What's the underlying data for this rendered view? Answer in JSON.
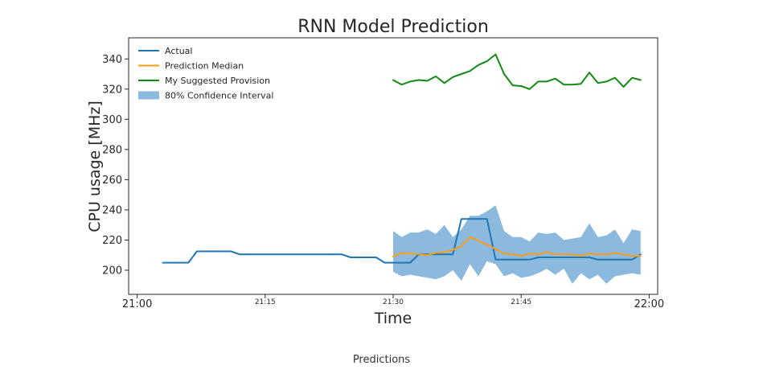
{
  "caption": "Predictions",
  "chart_data": {
    "type": "line",
    "title": "RNN Model Prediction",
    "xlabel": "Time",
    "ylabel": "CPU usage [MHz]",
    "ylim": [
      184,
      354
    ],
    "xlim": [
      -1.0,
      61.0
    ],
    "grid": false,
    "legend_position": "top-left",
    "x_ticks": [
      {
        "value": 0,
        "label": "21:00",
        "size": "large"
      },
      {
        "value": 15,
        "label": "21:15",
        "size": "small"
      },
      {
        "value": 30,
        "label": "21:30",
        "size": "small"
      },
      {
        "value": 45,
        "label": "21:45",
        "size": "small"
      },
      {
        "value": 60,
        "label": "22:00",
        "size": "large"
      }
    ],
    "y_ticks": [
      200,
      220,
      240,
      260,
      280,
      300,
      320,
      340
    ],
    "series": [
      {
        "name": "Actual",
        "kind": "line",
        "color": "#1f77b4",
        "x": [
          3,
          6,
          7,
          11,
          12,
          16,
          18,
          20,
          22,
          24,
          25,
          28,
          29,
          32,
          33,
          34,
          35,
          36,
          37,
          38,
          40,
          41,
          42,
          43,
          44,
          45,
          46,
          47,
          48,
          49,
          50,
          51,
          52,
          53,
          54,
          55,
          56,
          57,
          58,
          59
        ],
        "values": [
          205,
          205,
          212.5,
          212.5,
          210.5,
          210.5,
          210.5,
          210.5,
          210.5,
          210.5,
          208.5,
          208.5,
          205,
          205,
          210.5,
          210.5,
          210.5,
          210.5,
          210.5,
          234,
          234,
          234,
          207,
          207,
          207,
          207,
          207,
          208.5,
          208.5,
          208.5,
          208.5,
          208.5,
          208.5,
          208.5,
          207,
          207,
          207,
          207,
          207,
          210.5
        ]
      },
      {
        "name": "Prediction Median",
        "kind": "line",
        "color": "#ff9e16",
        "x": [
          30,
          31,
          32,
          33,
          34,
          35,
          36,
          37,
          38,
          39,
          40,
          41,
          42,
          43,
          44,
          45,
          46,
          47,
          48,
          49,
          50,
          51,
          52,
          53,
          54,
          55,
          56,
          57,
          58,
          59
        ],
        "values": [
          209,
          211.5,
          211,
          210.5,
          210,
          211.5,
          212,
          213.5,
          216,
          222,
          219.5,
          217,
          214,
          211,
          210.5,
          209.5,
          211,
          210.5,
          212,
          210.5,
          210.5,
          210.5,
          209.5,
          211,
          210.5,
          210.5,
          211.5,
          210.5,
          209.5,
          209.5
        ]
      },
      {
        "name": "My Suggested Provision",
        "kind": "line",
        "color": "#138a13",
        "x": [
          30,
          31,
          32,
          33,
          34,
          35,
          36,
          37,
          38,
          39,
          40,
          41,
          42,
          43,
          44,
          45,
          46,
          47,
          48,
          49,
          50,
          51,
          52,
          53,
          54,
          55,
          56,
          57,
          58,
          59
        ],
        "values": [
          326,
          323,
          325,
          326,
          325.5,
          328.5,
          324,
          328,
          330,
          332,
          336,
          338.5,
          343,
          330,
          322.5,
          322,
          320,
          325,
          325,
          327,
          323,
          323,
          323.5,
          331,
          324,
          325,
          327.5,
          321.5,
          327.5,
          326
        ]
      },
      {
        "name": "80% Confidence Interval",
        "kind": "band",
        "color": "#5f9ed1",
        "x": [
          30,
          31,
          32,
          33,
          34,
          35,
          36,
          37,
          38,
          39,
          40,
          41,
          42,
          43,
          44,
          45,
          46,
          47,
          48,
          49,
          50,
          51,
          52,
          53,
          54,
          55,
          56,
          57,
          58,
          59
        ],
        "lower": [
          199,
          196,
          197,
          196,
          195,
          194,
          196,
          200,
          193,
          204,
          196,
          206,
          204,
          196,
          198,
          195,
          196,
          198,
          201,
          197,
          201,
          191,
          198,
          194,
          197,
          191,
          196,
          197,
          198,
          197
        ],
        "upper": [
          226,
          222,
          225,
          225,
          227,
          224,
          230,
          222,
          227,
          236,
          236,
          239,
          243,
          226,
          222,
          222,
          219,
          225,
          224,
          225,
          220,
          221,
          222,
          231,
          222,
          223,
          227,
          218,
          227,
          226
        ]
      }
    ]
  }
}
